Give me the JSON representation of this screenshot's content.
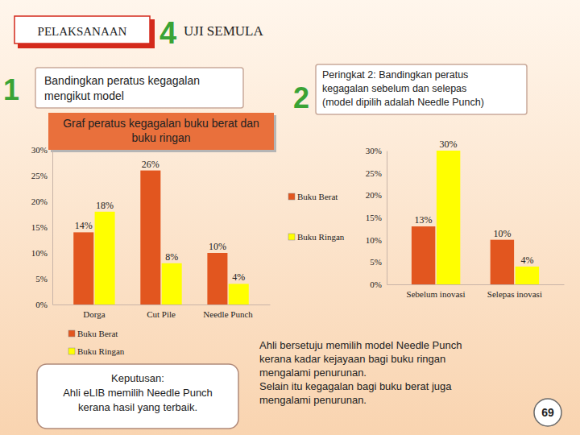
{
  "slide": {
    "header": "PELAKSANAAN",
    "step_number": "4",
    "step_title": "UJI SEMULA",
    "section1_number": "1",
    "section1_title": [
      "Bandingkan peratus kegagalan",
      "mengikut model"
    ],
    "section2_number": "2",
    "section2_title": [
      "Peringkat 2: Bandingkan peratus",
      "kegagalan sebelum dan selepas",
      "(model dipilih adalah Needle Punch)"
    ],
    "decision": [
      "Keputusan:",
      "Ahli eLIB memilih Needle Punch",
      "kerana hasil yang terbaik."
    ],
    "conclusion": [
      "Ahli bersetuju memilih model Needle Punch",
      "kerana kadar kejayaan bagi buku ringan",
      "mengalami penurunan.",
      "Selain itu kegagalan bagi buku berat juga",
      "mengalami penurunan."
    ],
    "page_number": "69"
  },
  "chart_data": [
    {
      "type": "bar",
      "title": "Graf peratus kegagalan buku berat dan buku ringan",
      "categories": [
        "Dorga",
        "Cut Pile",
        "Needle Punch"
      ],
      "series": [
        {
          "name": "Buku Berat",
          "color": "#e2561f",
          "values": [
            14,
            26,
            10
          ],
          "value_labels": [
            "14%",
            "26%",
            "10%"
          ]
        },
        {
          "name": "Buku Ringan",
          "color": "#ffff00",
          "values": [
            18,
            8,
            4
          ],
          "value_labels": [
            "18%",
            "8%",
            "4%"
          ]
        }
      ],
      "ylim": [
        0,
        30
      ],
      "yticks": [
        {
          "value": 0,
          "label": "0%"
        },
        {
          "value": 5,
          "label": "5%"
        },
        {
          "value": 10,
          "label": "10%"
        },
        {
          "value": 15,
          "label": "15%"
        },
        {
          "value": 20,
          "label": "20%"
        },
        {
          "value": 25,
          "label": "25%"
        },
        {
          "value": 30,
          "label": "30%"
        }
      ],
      "grid": false,
      "data_labels": true,
      "legend": "bottom"
    },
    {
      "type": "bar",
      "categories": [
        "Sebelum inovasi",
        "Selepas inovasi"
      ],
      "series": [
        {
          "name": "Buku Berat",
          "color": "#e2561f",
          "values": [
            13,
            10
          ],
          "value_labels": [
            "13%",
            "10%"
          ]
        },
        {
          "name": "Buku Ringan",
          "color": "#ffff00",
          "values": [
            30,
            4
          ],
          "value_labels": [
            "30%",
            "4%"
          ]
        }
      ],
      "ylim": [
        0,
        30
      ],
      "yticks": [
        {
          "value": 0,
          "label": "0%"
        },
        {
          "value": 5,
          "label": "5%"
        },
        {
          "value": 10,
          "label": "10%"
        },
        {
          "value": 15,
          "label": "15%"
        },
        {
          "value": 20,
          "label": "20%"
        },
        {
          "value": 25,
          "label": "25%"
        },
        {
          "value": 30,
          "label": "30%"
        }
      ],
      "grid": false,
      "data_labels": true,
      "legend": "left"
    }
  ]
}
